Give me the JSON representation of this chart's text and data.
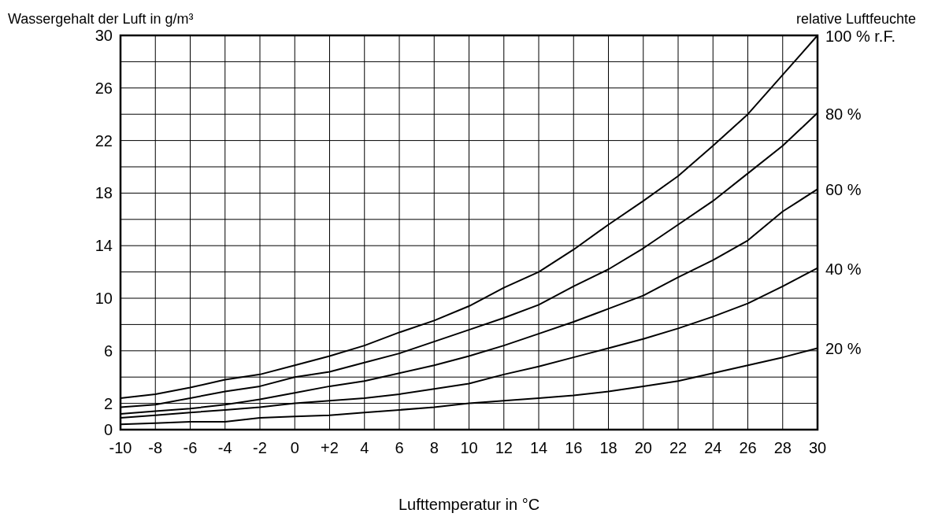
{
  "chart_data": {
    "type": "line",
    "xlabel": "Lufttemperatur in °C",
    "ylabel": "Wassergehalt der Luft in g/m³",
    "y2label": "relative Luftfeuchte",
    "x": [
      -10,
      -8,
      -6,
      -4,
      -2,
      0,
      2,
      4,
      6,
      8,
      10,
      12,
      14,
      16,
      18,
      20,
      22,
      24,
      26,
      28,
      30
    ],
    "xlim": [
      -10,
      30
    ],
    "ylim": [
      0,
      30
    ],
    "xticks": [
      -10,
      -8,
      -6,
      -4,
      -2,
      0,
      {
        "value": 2,
        "label": "+2"
      },
      4,
      6,
      8,
      10,
      12,
      14,
      16,
      18,
      20,
      22,
      24,
      26,
      28,
      30
    ],
    "yticks": [
      0,
      2,
      {
        "value": 4,
        "label": null
      },
      6,
      {
        "value": 8,
        "label": null
      },
      10,
      {
        "value": 12,
        "label": null
      },
      14,
      {
        "value": 16,
        "label": null
      },
      18,
      {
        "value": 20,
        "label": null
      },
      22,
      {
        "value": 24,
        "label": null
      },
      26,
      {
        "value": 28,
        "label": null
      },
      30
    ],
    "grid": true,
    "marker": "none",
    "line_style": "solid",
    "series": [
      {
        "name": "100 % r.F.",
        "color": "#000000",
        "values": [
          2.4,
          2.7,
          3.2,
          3.8,
          4.2,
          4.9,
          5.6,
          6.4,
          7.4,
          8.3,
          9.4,
          10.8,
          12.0,
          13.7,
          15.6,
          17.4,
          19.3,
          21.6,
          24.0,
          27.0,
          30.0
        ]
      },
      {
        "name": "80 %",
        "color": "#000000",
        "values": [
          1.7,
          1.9,
          2.4,
          2.9,
          3.3,
          4.0,
          4.4,
          5.1,
          5.8,
          6.7,
          7.6,
          8.5,
          9.5,
          10.9,
          12.2,
          13.8,
          15.6,
          17.4,
          19.5,
          21.6,
          24.1
        ]
      },
      {
        "name": "60 %",
        "color": "#000000",
        "values": [
          1.2,
          1.4,
          1.6,
          1.9,
          2.3,
          2.8,
          3.3,
          3.7,
          4.3,
          4.9,
          5.6,
          6.4,
          7.3,
          8.2,
          9.2,
          10.2,
          11.6,
          12.9,
          14.4,
          16.6,
          18.3
        ]
      },
      {
        "name": "40 %",
        "color": "#000000",
        "values": [
          0.9,
          1.1,
          1.3,
          1.5,
          1.7,
          2.0,
          2.2,
          2.4,
          2.7,
          3.1,
          3.5,
          4.2,
          4.8,
          5.5,
          6.2,
          6.9,
          7.7,
          8.6,
          9.6,
          10.9,
          12.3
        ]
      },
      {
        "name": "20 %",
        "color": "#000000",
        "values": [
          0.4,
          0.5,
          0.6,
          0.6,
          0.9,
          1.0,
          1.1,
          1.3,
          1.5,
          1.7,
          2.0,
          2.2,
          2.4,
          2.6,
          2.9,
          3.3,
          3.7,
          4.3,
          4.9,
          5.5,
          6.2
        ]
      }
    ]
  }
}
